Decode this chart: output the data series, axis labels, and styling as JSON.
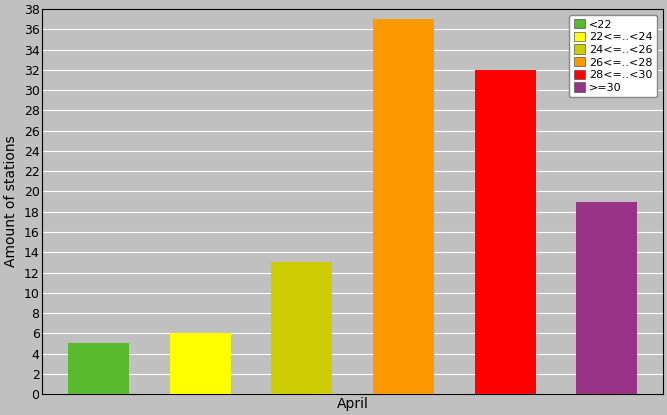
{
  "xlabel": "April",
  "ylabel": "Amount of stations",
  "ylim": [
    0,
    38
  ],
  "yticks": [
    0,
    2,
    4,
    6,
    8,
    10,
    12,
    14,
    16,
    18,
    20,
    22,
    24,
    26,
    28,
    30,
    32,
    34,
    36,
    38
  ],
  "bars": [
    {
      "label": "<22",
      "value": 5,
      "color": "#5ab92c"
    },
    {
      "label": "22<=..<24",
      "value": 6,
      "color": "#ffff00"
    },
    {
      "label": "24<=..<26",
      "value": 13,
      "color": "#cccc00"
    },
    {
      "label": "26<=..<28",
      "value": 37,
      "color": "#ff9900"
    },
    {
      "label": "28<=..<30",
      "value": 32,
      "color": "#ff0000"
    },
    {
      "label": ">=30",
      "value": 19,
      "color": "#993388"
    }
  ],
  "background_color": "#c0c0c0",
  "plot_bg_color": "#c0c0c0",
  "legend_fontsize": 8,
  "ylabel_fontsize": 10,
  "xlabel_fontsize": 10,
  "bar_width": 0.6,
  "grid_color": "#ffffff",
  "grid_linewidth": 0.8
}
